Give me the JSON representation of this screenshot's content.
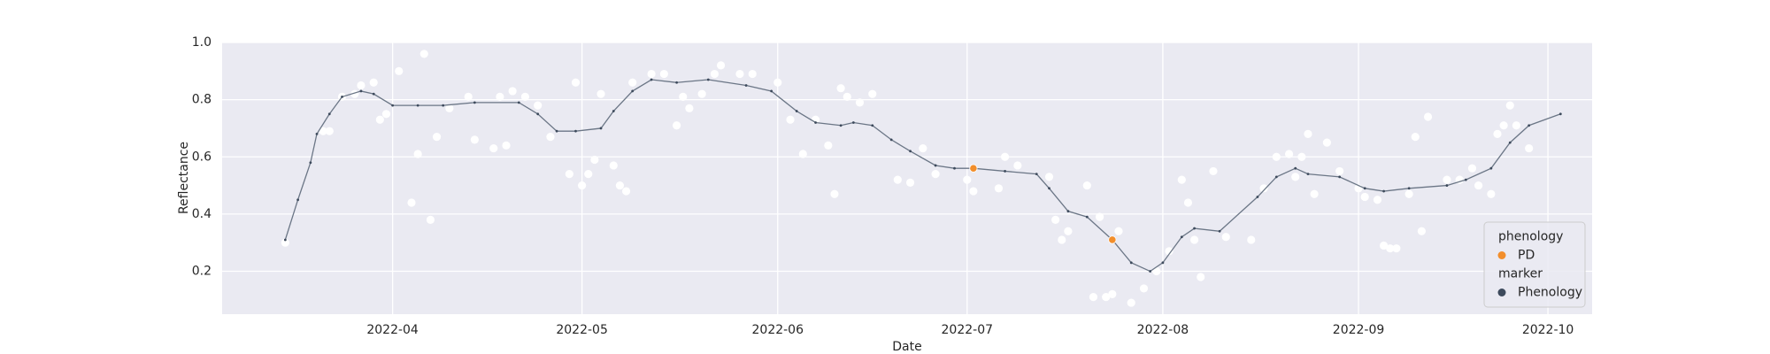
{
  "chart_data": {
    "type": "line",
    "x_label": "Date",
    "y_label": "Reflectance",
    "xlim": [
      "2022-03-05",
      "2022-10-08"
    ],
    "xticks": [
      {
        "value": "2022-04-01",
        "label": "2022-04"
      },
      {
        "value": "2022-05-01",
        "label": "2022-05"
      },
      {
        "value": "2022-06-01",
        "label": "2022-06"
      },
      {
        "value": "2022-07-01",
        "label": "2022-07"
      },
      {
        "value": "2022-08-01",
        "label": "2022-08"
      },
      {
        "value": "2022-09-01",
        "label": "2022-09"
      },
      {
        "value": "2022-10-01",
        "label": "2022-10"
      }
    ],
    "ylim": [
      0.05,
      1.0
    ],
    "yticks": [
      0.2,
      0.4,
      0.6,
      0.8,
      {
        "value": 1.0,
        "label": "1.0"
      }
    ],
    "grid": true,
    "background": "#eaeaf2",
    "legend": {
      "loc": "lower right",
      "titles": [
        "phenology",
        "marker"
      ]
    },
    "series": [
      {
        "kind": "scatter",
        "color": "#ffffff",
        "x": [
          "2022-03-15",
          "2022-03-21",
          "2022-03-22",
          "2022-03-24",
          "2022-03-26",
          "2022-03-27",
          "2022-03-29",
          "2022-03-30",
          "2022-03-31",
          "2022-04-02",
          "2022-04-04",
          "2022-04-05",
          "2022-04-06",
          "2022-04-07",
          "2022-04-08",
          "2022-04-10",
          "2022-04-13",
          "2022-04-14",
          "2022-04-17",
          "2022-04-18",
          "2022-04-19",
          "2022-04-20",
          "2022-04-22",
          "2022-04-24",
          "2022-04-26",
          "2022-04-29",
          "2022-04-30",
          "2022-05-01",
          "2022-05-02",
          "2022-05-03",
          "2022-05-04",
          "2022-05-06",
          "2022-05-07",
          "2022-05-08",
          "2022-05-09",
          "2022-05-12",
          "2022-05-14",
          "2022-05-16",
          "2022-05-17",
          "2022-05-18",
          "2022-05-20",
          "2022-05-22",
          "2022-05-23",
          "2022-05-26",
          "2022-05-28",
          "2022-06-01",
          "2022-06-03",
          "2022-06-05",
          "2022-06-07",
          "2022-06-09",
          "2022-06-10",
          "2022-06-11",
          "2022-06-12",
          "2022-06-14",
          "2022-06-16",
          "2022-06-20",
          "2022-06-22",
          "2022-06-24",
          "2022-06-26",
          "2022-07-01",
          "2022-07-02",
          "2022-07-06",
          "2022-07-07",
          "2022-07-09",
          "2022-07-14",
          "2022-07-15",
          "2022-07-16",
          "2022-07-17",
          "2022-07-20",
          "2022-07-21",
          "2022-07-22",
          "2022-07-23",
          "2022-07-24",
          "2022-07-25",
          "2022-07-27",
          "2022-07-29",
          "2022-07-31",
          "2022-08-02",
          "2022-08-04",
          "2022-08-05",
          "2022-08-06",
          "2022-08-07",
          "2022-08-09",
          "2022-08-11",
          "2022-08-15",
          "2022-08-17",
          "2022-08-19",
          "2022-08-21",
          "2022-08-22",
          "2022-08-23",
          "2022-08-24",
          "2022-08-25",
          "2022-08-27",
          "2022-08-29",
          "2022-09-01",
          "2022-09-02",
          "2022-09-04",
          "2022-09-05",
          "2022-09-06",
          "2022-09-07",
          "2022-09-09",
          "2022-09-10",
          "2022-09-11",
          "2022-09-12",
          "2022-09-15",
          "2022-09-17",
          "2022-09-19",
          "2022-09-20",
          "2022-09-22",
          "2022-09-23",
          "2022-09-24",
          "2022-09-25",
          "2022-09-26",
          "2022-09-28"
        ],
        "values": [
          0.3,
          0.69,
          0.69,
          0.81,
          0.82,
          0.85,
          0.86,
          0.73,
          0.75,
          0.9,
          0.44,
          0.61,
          0.96,
          0.38,
          0.67,
          0.77,
          0.81,
          0.66,
          0.63,
          0.81,
          0.64,
          0.83,
          0.81,
          0.78,
          0.67,
          0.54,
          0.86,
          0.5,
          0.54,
          0.59,
          0.82,
          0.57,
          0.5,
          0.48,
          0.86,
          0.89,
          0.89,
          0.71,
          0.81,
          0.77,
          0.82,
          0.89,
          0.92,
          0.89,
          0.89,
          0.86,
          0.73,
          0.61,
          0.73,
          0.64,
          0.47,
          0.84,
          0.81,
          0.79,
          0.82,
          0.52,
          0.51,
          0.63,
          0.54,
          0.52,
          0.48,
          0.49,
          0.6,
          0.57,
          0.53,
          0.38,
          0.31,
          0.34,
          0.5,
          0.11,
          0.39,
          0.11,
          0.12,
          0.34,
          0.09,
          0.14,
          0.2,
          0.27,
          0.52,
          0.44,
          0.31,
          0.18,
          0.55,
          0.32,
          0.31,
          0.49,
          0.6,
          0.61,
          0.53,
          0.6,
          0.68,
          0.47,
          0.65,
          0.55,
          0.49,
          0.46,
          0.45,
          0.29,
          0.28,
          0.28,
          0.47,
          0.67,
          0.34,
          0.74,
          0.52,
          0.52,
          0.56,
          0.5,
          0.47,
          0.68,
          0.71,
          0.78,
          0.71,
          0.63
        ]
      },
      {
        "name": "PD",
        "kind": "scatter",
        "color": "#f28e2b",
        "x": [
          "2022-07-02",
          "2022-07-24"
        ],
        "values": [
          0.56,
          0.31
        ]
      },
      {
        "name": "Phenology",
        "kind": "line",
        "color": "#6b7686",
        "marker_color": "#3d4a5c",
        "x": [
          "2022-03-15",
          "2022-03-17",
          "2022-03-19",
          "2022-03-20",
          "2022-03-22",
          "2022-03-24",
          "2022-03-27",
          "2022-03-29",
          "2022-04-01",
          "2022-04-05",
          "2022-04-09",
          "2022-04-14",
          "2022-04-21",
          "2022-04-24",
          "2022-04-27",
          "2022-04-30",
          "2022-05-04",
          "2022-05-06",
          "2022-05-09",
          "2022-05-12",
          "2022-05-16",
          "2022-05-21",
          "2022-05-27",
          "2022-05-31",
          "2022-06-04",
          "2022-06-07",
          "2022-06-11",
          "2022-06-13",
          "2022-06-16",
          "2022-06-19",
          "2022-06-22",
          "2022-06-26",
          "2022-06-29",
          "2022-07-02",
          "2022-07-07",
          "2022-07-12",
          "2022-07-14",
          "2022-07-17",
          "2022-07-20",
          "2022-07-24",
          "2022-07-27",
          "2022-07-30",
          "2022-08-01",
          "2022-08-04",
          "2022-08-06",
          "2022-08-10",
          "2022-08-16",
          "2022-08-19",
          "2022-08-22",
          "2022-08-24",
          "2022-08-29",
          "2022-09-02",
          "2022-09-05",
          "2022-09-09",
          "2022-09-15",
          "2022-09-18",
          "2022-09-22",
          "2022-09-25",
          "2022-09-28",
          "2022-10-03"
        ],
        "values": [
          0.31,
          0.45,
          0.58,
          0.68,
          0.75,
          0.81,
          0.83,
          0.82,
          0.78,
          0.78,
          0.78,
          0.79,
          0.79,
          0.75,
          0.69,
          0.69,
          0.7,
          0.76,
          0.83,
          0.87,
          0.86,
          0.87,
          0.85,
          0.83,
          0.76,
          0.72,
          0.71,
          0.72,
          0.71,
          0.66,
          0.62,
          0.57,
          0.56,
          0.56,
          0.55,
          0.54,
          0.49,
          0.41,
          0.39,
          0.31,
          0.23,
          0.2,
          0.23,
          0.32,
          0.35,
          0.34,
          0.46,
          0.53,
          0.56,
          0.54,
          0.53,
          0.49,
          0.48,
          0.49,
          0.5,
          0.52,
          0.56,
          0.65,
          0.71,
          0.75
        ]
      }
    ]
  }
}
